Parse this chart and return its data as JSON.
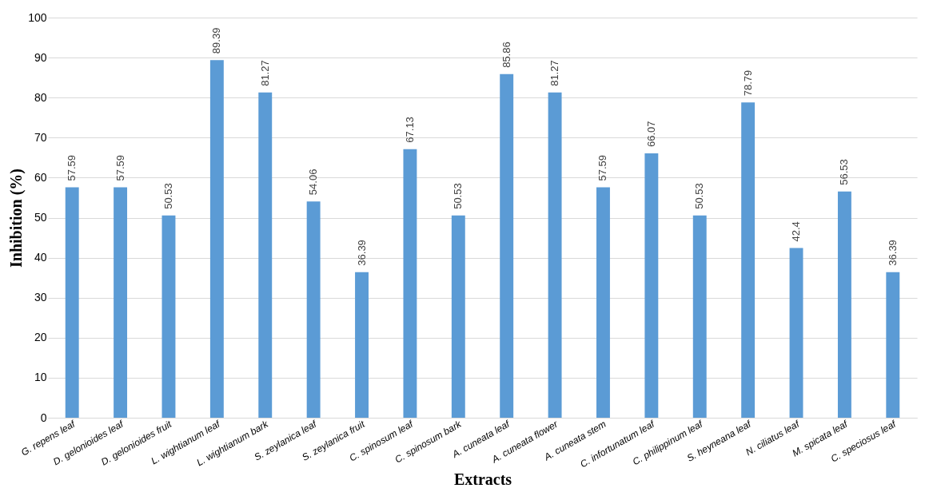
{
  "chart_data": {
    "type": "bar",
    "xlabel": "Extracts",
    "ylabel": "Inhibition (%)",
    "categories": [
      "G. repens leaf",
      "D. gelonioides leaf",
      "D. gelonioides fruit",
      "L. wightianum leaf",
      "L. wightianum bark",
      "S. zeylanica leaf",
      "S. zeylanica fruit",
      "C. spinosum leaf",
      "C. spinosum bark",
      "A. cuneata leaf",
      "A. cuneata flower",
      "A. cuneata stem",
      "C. infortunatum leaf",
      "C. philippinum leaf",
      "S. heyneana leaf",
      "N. ciliatus leaf",
      "M. spicata leaf",
      "C. speciosus leaf"
    ],
    "values": [
      57.59,
      57.59,
      50.53,
      89.39,
      81.27,
      54.06,
      36.39,
      67.13,
      50.53,
      85.86,
      81.27,
      57.59,
      66.07,
      50.53,
      78.79,
      42.4,
      56.53,
      36.39
    ],
    "color": "#5b9bd5",
    "ylim": [
      0,
      100
    ],
    "yticks": [
      0,
      10,
      20,
      30,
      40,
      50,
      60,
      70,
      80,
      90,
      100
    ],
    "grid": "y",
    "data_labels": true
  }
}
